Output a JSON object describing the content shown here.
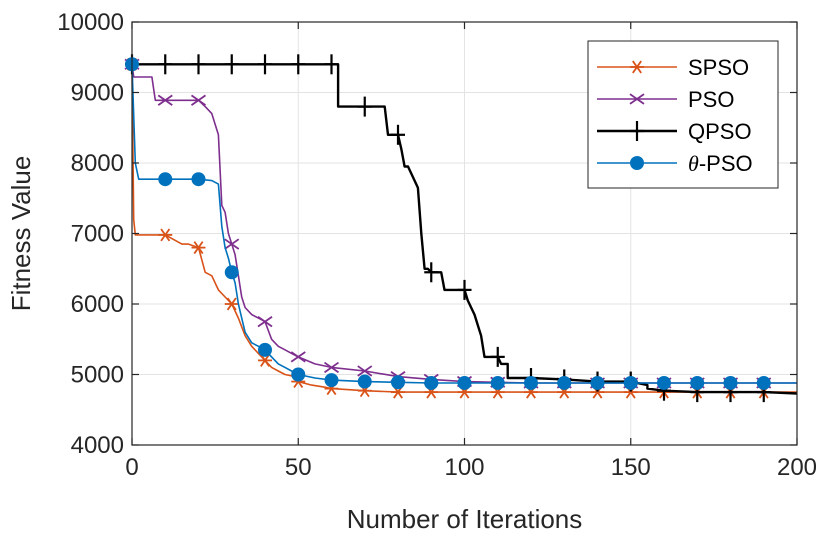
{
  "chart_data": {
    "type": "line",
    "title": "",
    "xlabel": "Number of Iterations",
    "ylabel": "Fitness Value",
    "xlim": [
      0,
      200
    ],
    "ylim": [
      4000,
      10000
    ],
    "xticks": [
      0,
      50,
      100,
      150,
      200
    ],
    "yticks": [
      4000,
      5000,
      6000,
      7000,
      8000,
      9000,
      10000
    ],
    "xtick_labels": [
      "0",
      "50",
      "100",
      "150",
      "200"
    ],
    "ytick_labels": [
      "4000",
      "5000",
      "6000",
      "7000",
      "8000",
      "9000",
      "10000"
    ],
    "grid": true,
    "legend_position": "top-right",
    "series": [
      {
        "name": "SPSO",
        "color": "#D95319",
        "marker": "asterisk",
        "line_width": 1.6,
        "x": [
          0,
          0.5,
          1,
          10,
          15,
          17,
          20,
          22,
          24,
          26,
          28,
          30,
          32,
          34,
          36,
          38,
          40,
          42,
          44,
          46,
          48,
          50,
          54,
          58,
          60,
          70,
          80,
          90,
          100,
          110,
          120,
          130,
          140,
          150,
          160,
          170,
          180,
          190,
          200
        ],
        "y": [
          9400,
          7200,
          6980,
          6980,
          6850,
          6850,
          6800,
          6450,
          6400,
          6200,
          6100,
          6000,
          5800,
          5550,
          5400,
          5300,
          5200,
          5100,
          5050,
          5000,
          4980,
          4900,
          4850,
          4820,
          4800,
          4770,
          4750,
          4750,
          4750,
          4750,
          4750,
          4750,
          4750,
          4750,
          4750,
          4750,
          4750,
          4750,
          4750
        ]
      },
      {
        "name": "PSO",
        "color": "#7E2F8E",
        "marker": "x",
        "line_width": 1.6,
        "x": [
          0,
          0.5,
          6,
          7,
          20,
          22,
          24,
          26,
          27,
          28,
          29,
          30,
          31,
          32,
          33,
          34,
          36,
          38,
          40,
          42,
          44,
          46,
          48,
          50,
          55,
          60,
          70,
          80,
          90,
          100,
          110,
          120,
          130,
          140,
          150,
          160,
          170,
          180,
          190,
          200
        ],
        "y": [
          9400,
          9220,
          9220,
          8890,
          8890,
          8800,
          8700,
          8400,
          7400,
          7300,
          7000,
          6850,
          6700,
          6400,
          6100,
          5950,
          5850,
          5800,
          5750,
          5500,
          5400,
          5350,
          5300,
          5250,
          5150,
          5100,
          5050,
          4970,
          4930,
          4900,
          4890,
          4880,
          4880,
          4880,
          4880,
          4880,
          4880,
          4880,
          4880,
          4880
        ]
      },
      {
        "name": "QPSO",
        "color": "#000000",
        "marker": "plus",
        "line_width": 2.4,
        "x": [
          0,
          62,
          62,
          70,
          74,
          76,
          77,
          80,
          81,
          82,
          83,
          86,
          87,
          88,
          89,
          90,
          93,
          94,
          95,
          100,
          101,
          103,
          105,
          106,
          108,
          110,
          111,
          113,
          113,
          120,
          130,
          140,
          150,
          155,
          155,
          160,
          170,
          180,
          190,
          200
        ],
        "y": [
          9400,
          9400,
          8800,
          8800,
          8800,
          8800,
          8400,
          8400,
          8200,
          7950,
          7950,
          7650,
          7000,
          6500,
          6500,
          6450,
          6450,
          6200,
          6200,
          6200,
          6050,
          5850,
          5550,
          5250,
          5250,
          5250,
          5150,
          5150,
          4950,
          4950,
          4930,
          4900,
          4900,
          4850,
          4800,
          4770,
          4750,
          4750,
          4750,
          4730
        ]
      },
      {
        "name": "θ-PSO",
        "color": "#0072BD",
        "marker": "circle",
        "line_width": 1.6,
        "x": [
          0,
          1,
          2,
          20,
          24,
          26,
          27,
          28,
          29,
          30,
          31,
          32,
          33,
          34,
          36,
          38,
          40,
          42,
          44,
          46,
          48,
          50,
          55,
          60,
          70,
          80,
          90,
          100,
          110,
          120,
          130,
          140,
          150,
          160,
          170,
          180,
          190,
          200
        ],
        "y": [
          9400,
          8000,
          7770,
          7770,
          7750,
          7700,
          7100,
          6800,
          6650,
          6450,
          6300,
          6000,
          5800,
          5600,
          5450,
          5400,
          5350,
          5250,
          5150,
          5100,
          5050,
          5000,
          4950,
          4920,
          4900,
          4890,
          4880,
          4880,
          4880,
          4880,
          4880,
          4880,
          4880,
          4880,
          4880,
          4880,
          4880,
          4880
        ]
      }
    ]
  }
}
